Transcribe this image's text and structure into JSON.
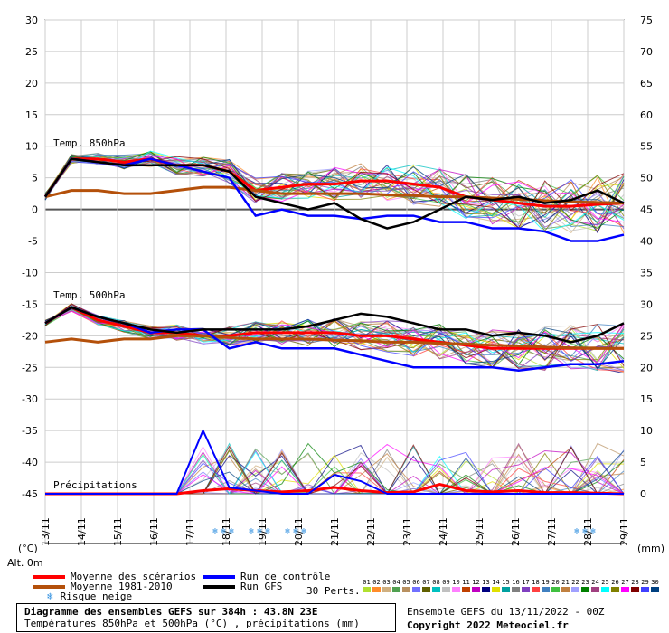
{
  "chart_data": {
    "type": "line",
    "title": "Diagramme des ensembles GEFS sur 384h : 43.8N 23E",
    "subtitle": "Températures 850hPa et 500hPa (°C) , précipitations (mm)",
    "left_axis_unit": "(°C)",
    "right_axis_unit": "(mm)",
    "alt_label": "Alt. 0m",
    "left_ticks": [
      30,
      25,
      20,
      15,
      10,
      5,
      0,
      -5,
      -10,
      -15,
      -20,
      -25,
      -30,
      -35,
      -40,
      -45
    ],
    "right_ticks": [
      75,
      70,
      65,
      60,
      55,
      50,
      45,
      40,
      35,
      30,
      25,
      20,
      15,
      10,
      5,
      0
    ],
    "x_dates": [
      "13/11",
      "14/11",
      "15/11",
      "16/11",
      "17/11",
      "18/11",
      "19/11",
      "20/11",
      "21/11",
      "22/11",
      "23/11",
      "24/11",
      "25/11",
      "26/11",
      "27/11",
      "28/11",
      "29/11"
    ],
    "panel_labels": {
      "t850": "Temp. 850hPa",
      "t500": "Temp. 500hPa",
      "precip": "Précipitations"
    },
    "snow_risk_dates": [
      "18/11",
      "19/11",
      "20/11",
      "28/11"
    ],
    "series": [
      {
        "name": "Moyenne des scénarios",
        "color": "#ff0000",
        "t850": [
          2,
          8,
          8,
          7.5,
          8,
          7,
          7,
          6,
          3,
          3.5,
          4,
          4,
          4.5,
          4.5,
          4,
          3.5,
          2,
          1.5,
          1,
          0.5,
          0.5,
          0.8,
          1
        ],
        "t500": [
          -18,
          -15.5,
          -17.5,
          -18.5,
          -19.5,
          -19.5,
          -20,
          -20,
          -19.5,
          -19.5,
          -19.5,
          -19.5,
          -20,
          -20,
          -20.5,
          -21,
          -21.5,
          -22,
          -22,
          -22,
          -22,
          -22,
          -22
        ]
      },
      {
        "name": "Moyenne 1981-2010",
        "color": "#b4500a",
        "t850": [
          2,
          3,
          3,
          2.5,
          2.5,
          3,
          3.5,
          3.5,
          3,
          2.5,
          2.5,
          2.5,
          2.5,
          2.3,
          2.2,
          2,
          2,
          1.8,
          1.6,
          1.4,
          1.2,
          1.1,
          1
        ],
        "t500": [
          -21,
          -20.5,
          -21,
          -20.5,
          -20.5,
          -20,
          -20,
          -20.3,
          -20.5,
          -20.5,
          -20.5,
          -20.7,
          -20.8,
          -21,
          -21,
          -21.2,
          -21.3,
          -21.5,
          -21.6,
          -21.8,
          -21.9,
          -22,
          -22
        ]
      },
      {
        "name": "Run de contrôle",
        "color": "#0000ff",
        "t850": [
          2,
          8,
          7.5,
          7,
          8,
          7,
          6,
          5,
          -1,
          0,
          -1,
          -1,
          -1.5,
          -1,
          -1,
          -2,
          -2,
          -3,
          -3,
          -3.5,
          -5,
          -5,
          -4
        ],
        "t500": [
          -18,
          -15.5,
          -17,
          -18,
          -19.5,
          -19,
          -19,
          -22,
          -21,
          -22,
          -22,
          -22,
          -23,
          -24,
          -25,
          -25,
          -25,
          -25,
          -25.5,
          -25,
          -24.5,
          -24.5,
          -24
        ]
      },
      {
        "name": "Run GFS",
        "color": "#000000",
        "t850": [
          2,
          8,
          7.5,
          7,
          7,
          7,
          7,
          6,
          2,
          1,
          0,
          1,
          -1.5,
          -3,
          -2,
          0,
          2,
          1.5,
          2,
          1,
          1.5,
          3,
          1
        ],
        "t500": [
          -18,
          -15.5,
          -17,
          -18,
          -19,
          -19.5,
          -19,
          -19,
          -19,
          -19,
          -18.5,
          -17.5,
          -16.5,
          -17,
          -18,
          -19,
          -19,
          -20,
          -19.5,
          -20,
          -21,
          -20,
          -18
        ]
      }
    ],
    "precip_red_mean_mm": [
      0,
      0,
      0,
      0,
      0,
      0,
      0.5,
      0.8,
      0.5,
      0.3,
      0.5,
      1,
      0.5,
      0.2,
      0.3,
      1.5,
      0.5,
      0.3,
      0.5,
      0.2,
      0.2,
      0.1,
      0
    ],
    "precip_blue_ctrl_mm": [
      0,
      0,
      0,
      0,
      0,
      0,
      10,
      1,
      0.5,
      0,
      0,
      3,
      2,
      0,
      0,
      0,
      0,
      0,
      0,
      0,
      0,
      0,
      0
    ],
    "ylim_left": [
      -45,
      30
    ],
    "ylim_right": [
      0,
      75
    ],
    "grid": true
  },
  "legend": {
    "mean": "Moyenne des scénarios",
    "clim": "Moyenne 1981-2010",
    "snow": "Risque neige",
    "ctrl": "Run de contrôle",
    "gfs": "Run GFS",
    "perts": "30 Perts.",
    "pert_numbers": [
      "01",
      "02",
      "03",
      "04",
      "05",
      "06",
      "07",
      "08",
      "09",
      "10",
      "11",
      "12",
      "13",
      "14",
      "15",
      "16",
      "17",
      "18",
      "19",
      "20",
      "21",
      "22",
      "23",
      "24",
      "25",
      "26",
      "27",
      "28",
      "29",
      "30"
    ],
    "pert_colors": [
      "#b0e030",
      "#ff8c2a",
      "#d0b080",
      "#50a050",
      "#b89060",
      "#7070ff",
      "#606000",
      "#00c0c0",
      "#c0c0c0",
      "#ff80ff",
      "#c04000",
      "#c000c0",
      "#000080",
      "#e0e000",
      "#00a0a0",
      "#808080",
      "#8040c0",
      "#ff4040",
      "#4080c0",
      "#40c040",
      "#c08040",
      "#a0a0ff",
      "#008000",
      "#a04080",
      "#00ffff",
      "#808000",
      "#ff00ff",
      "#800000",
      "#4040ff",
      "#004080"
    ]
  },
  "footer": {
    "ensemble": "Ensemble GEFS du 13/11/2022 - 00Z",
    "copyright": "Copyright 2022 Meteociel.fr"
  }
}
